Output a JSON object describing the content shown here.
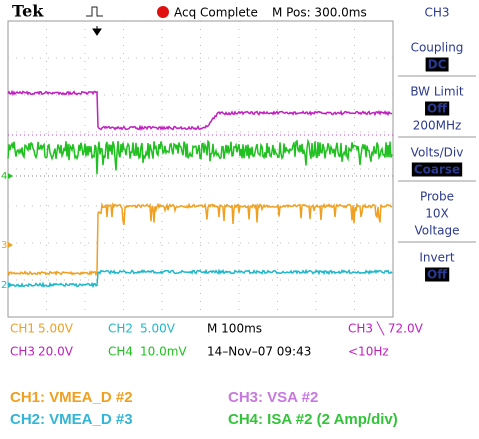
{
  "header": {
    "brand": "Tek",
    "status": "Acq Complete",
    "position": "M Pos: 300.0ms"
  },
  "menu": {
    "channel": "CH3",
    "items": [
      {
        "lines": [
          "Coupling"
        ],
        "value": "DC"
      },
      {
        "lines": [
          "BW Limit"
        ],
        "value": "Off",
        "after": "200MHz"
      },
      {
        "lines": [
          "Volts/Div"
        ],
        "value": "Coarse"
      },
      {
        "lines": [
          "Probe",
          "10X",
          "Voltage"
        ]
      },
      {
        "lines": [
          "Invert"
        ],
        "value": "Off"
      }
    ]
  },
  "markers": [
    "4",
    "3",
    "2"
  ],
  "readout": [
    [
      "CH1",
      "5.00V",
      "CH2",
      "5.00V",
      "M 100ms",
      "CH3 ╲ 72.0V"
    ],
    [
      "CH3",
      "20.0V",
      "CH4",
      "10.0mV",
      "14–Nov–07 09:43",
      "<10Hz"
    ]
  ],
  "legend": [
    "CH1: VMEA_D #2",
    "CH3: VSA #2",
    "CH2: VMEA_D #3",
    "CH4: ISA #2 (2 Amp/div)"
  ]
}
